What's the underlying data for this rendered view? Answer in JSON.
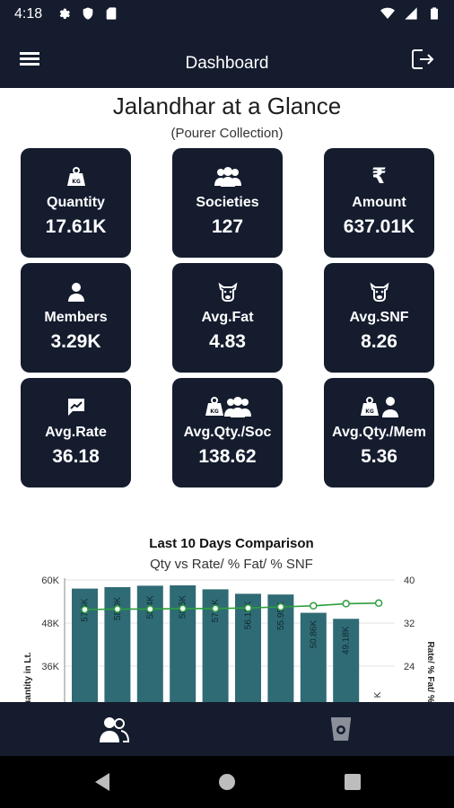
{
  "status_bar": {
    "time": "4:18",
    "left_icons": [
      "gear-icon",
      "shield-icon",
      "sd-card-icon"
    ],
    "right_icons": [
      "wifi-icon",
      "signal-icon",
      "battery-icon"
    ]
  },
  "app_bar": {
    "title": "Dashboard",
    "menu_icon": "hamburger-menu-icon",
    "logout_icon": "logout-icon"
  },
  "header": {
    "title": "Jalandhar at a Glance",
    "subtitle": "(Pourer Collection)"
  },
  "tiles": [
    {
      "id": "quantity",
      "icon": "weight-kg-icon",
      "label": "Quantity",
      "value": "17.61K"
    },
    {
      "id": "societies",
      "icon": "group-icon",
      "label": "Societies",
      "value": "127"
    },
    {
      "id": "amount",
      "icon": "rupee-icon",
      "label": "Amount",
      "value": "637.01K",
      "symbol": "₹"
    },
    {
      "id": "members",
      "icon": "person-icon",
      "label": "Members",
      "value": "3.29K"
    },
    {
      "id": "avg-fat",
      "icon": "cow-icon",
      "label": "Avg.Fat",
      "value": "4.83"
    },
    {
      "id": "avg-snf",
      "icon": "cow-icon",
      "label": "Avg.SNF",
      "value": "8.26"
    },
    {
      "id": "avg-rate",
      "icon": "rate-chart-icon",
      "label": "Avg.Rate",
      "value": "36.18"
    },
    {
      "id": "avg-qty-soc",
      "icon": "weight-group-icon",
      "label": "Avg.Qty./Soc",
      "value": "138.62"
    },
    {
      "id": "avg-qty-mem",
      "icon": "weight-person-icon",
      "label": "Avg.Qty./Mem",
      "value": "5.36"
    }
  ],
  "chart": {
    "title": "Last 10 Days Comparison",
    "subtitle": "Qty vs Rate/ % Fat/ % SNF"
  },
  "chart_data": {
    "type": "bar",
    "title": "Last 10 Days Comparison",
    "subtitle": "Qty vs Rate/ % Fat/ % SNF",
    "ylabel": "Quantity in Lt.",
    "y2label": "Rate/ % Fat/ % SNF",
    "yticks": [
      "60K",
      "48K",
      "36K"
    ],
    "y2ticks": [
      "40",
      "32",
      "24"
    ],
    "ylim": [
      24000,
      60000
    ],
    "y2lim": [
      16,
      40
    ],
    "bar_labels": [
      "57.6K",
      "58.0K",
      "58.4K",
      "58.5K",
      "57.4K",
      "56.15K",
      "55.95K",
      "50.86K",
      "49.18K"
    ],
    "series": [
      {
        "values": [
          57600,
          58000,
          58400,
          58500,
          57400,
          56150,
          55950,
          50860,
          49180,
          null
        ]
      },
      {
        "values": [
          34.5,
          34.6,
          34.6,
          34.7,
          34.7,
          34.8,
          35.0,
          35.2,
          35.6,
          35.7
        ]
      }
    ],
    "partial_label": "K",
    "colors": {
      "bar": "#2f6b74",
      "line": "#2e9e3e"
    }
  },
  "bottom_nav": {
    "items": [
      {
        "icon": "members-icon",
        "active": true
      },
      {
        "icon": "milk-can-icon",
        "active": false
      }
    ]
  },
  "system_nav": {
    "icons": [
      "back-icon",
      "home-icon",
      "recents-icon"
    ]
  }
}
